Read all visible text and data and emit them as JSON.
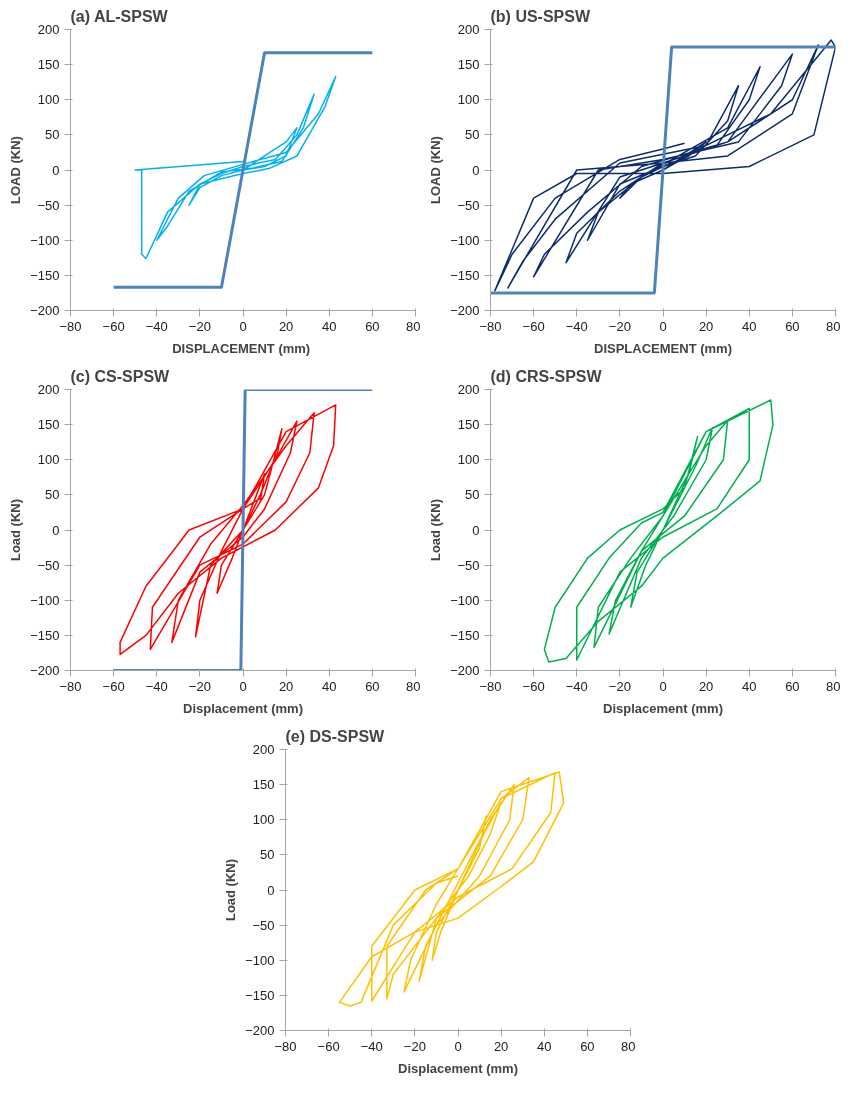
{
  "chart_data": [
    {
      "type": "line",
      "title": "(a) AL-SPSW",
      "xlabel": "DISPLACEMENT  (mm)",
      "ylabel": "LOAD (KN)",
      "xlim": [
        -80,
        80
      ],
      "ylim": [
        -200,
        200
      ],
      "xticks": [
        -80,
        -60,
        -40,
        -20,
        0,
        20,
        40,
        60,
        80
      ],
      "yticks": [
        -200,
        -150,
        -100,
        -50,
        0,
        50,
        100,
        150,
        200
      ],
      "series": [
        {
          "color": "#00b0f0",
          "x": [
            0,
            10,
            20,
            25,
            20,
            10,
            0,
            -10,
            -20,
            -25,
            -20,
            -10,
            0,
            15,
            25,
            33,
            28,
            18,
            5,
            -10,
            -25,
            -35,
            -40,
            -30,
            -18,
            0,
            20,
            35,
            43,
            38,
            25,
            12,
            0,
            -20,
            -35,
            -45,
            -47,
            -47,
            -50,
            0
          ],
          "values": [
            0,
            20,
            40,
            60,
            20,
            5,
            0,
            -8,
            -25,
            -50,
            -20,
            -5,
            5,
            15,
            50,
            108,
            60,
            12,
            3,
            -3,
            -30,
            -80,
            -100,
            -40,
            -8,
            8,
            25,
            80,
            133,
            90,
            20,
            2,
            -5,
            -20,
            -60,
            -126,
            -120,
            0,
            0,
            12
          ]
        },
        {
          "color": "#4f81bd",
          "x": [
            -60,
            -10,
            10,
            60
          ],
          "values": [
            -167,
            -167,
            167,
            167
          ]
        }
      ]
    },
    {
      "type": "line",
      "title": "(b) US-SPSW",
      "xlabel": "DISPLACEMENT (mm)",
      "ylabel": "LOAD (KN)",
      "xlim": [
        -80,
        80
      ],
      "ylim": [
        -200,
        200
      ],
      "xticks": [
        -80,
        -60,
        -40,
        -20,
        0,
        20,
        40,
        60,
        80
      ],
      "yticks": [
        -200,
        -150,
        -100,
        -50,
        0,
        50,
        100,
        150,
        200
      ],
      "series": [
        {
          "color": "#0d2c6c",
          "x": [
            0,
            10,
            20,
            12,
            0,
            -10,
            -20,
            -15,
            0,
            20,
            35,
            30,
            15,
            0,
            -20,
            -35,
            -30,
            -10,
            10,
            30,
            45,
            40,
            25,
            0,
            -20,
            -45,
            -40,
            -20,
            0,
            30,
            60,
            55,
            35,
            0,
            -30,
            -60,
            -55,
            -35,
            -10,
            30,
            60,
            72,
            60,
            30,
            0,
            -40,
            -72,
            -65,
            -50,
            -20,
            20,
            50,
            78,
            80,
            70,
            40,
            0,
            -40,
            -60,
            -78,
            -70,
            -50,
            -20,
            0,
            10
          ],
          "values": [
            0,
            20,
            40,
            20,
            5,
            -10,
            -40,
            -20,
            0,
            35,
            120,
            70,
            20,
            5,
            -20,
            -100,
            -60,
            -10,
            25,
            60,
            147,
            100,
            35,
            10,
            -10,
            -132,
            -90,
            -30,
            10,
            40,
            165,
            120,
            40,
            15,
            0,
            -152,
            -120,
            -60,
            5,
            40,
            100,
            178,
            80,
            20,
            10,
            0,
            -168,
            -130,
            -70,
            10,
            35,
            80,
            185,
            175,
            50,
            5,
            -5,
            -5,
            -40,
            -172,
            -120,
            -40,
            15,
            30,
            38
          ]
        },
        {
          "color": "#4f81bd",
          "x": [
            -80,
            -4,
            4,
            80
          ],
          "values": [
            -175,
            -175,
            175,
            175
          ]
        }
      ]
    },
    {
      "type": "line",
      "title": "(c) CS-SPSW",
      "xlabel": "Displacement (mm)",
      "ylabel": "Load (KN)",
      "xlim": [
        -80,
        80
      ],
      "ylim": [
        -200,
        200
      ],
      "xticks": [
        -80,
        -60,
        -40,
        -20,
        0,
        20,
        40,
        60,
        80
      ],
      "yticks": [
        -200,
        -150,
        -100,
        -50,
        0,
        50,
        100,
        150,
        200
      ],
      "series": [
        {
          "color": "#ff0000",
          "x": [
            0,
            5,
            10,
            8,
            0,
            -5,
            -12,
            -10,
            0,
            10,
            18,
            16,
            8,
            0,
            -15,
            -22,
            -20,
            -10,
            0,
            15,
            25,
            22,
            10,
            0,
            -20,
            -33,
            -30,
            -15,
            0,
            20,
            33,
            31,
            20,
            0,
            -20,
            -43,
            -42,
            -20,
            0,
            20,
            43,
            42,
            35,
            15,
            -10,
            -30,
            -45,
            -57,
            -57,
            -45,
            -25,
            0,
            8
          ],
          "values": [
            0,
            40,
            80,
            40,
            0,
            -40,
            -90,
            -50,
            0,
            50,
            144,
            110,
            50,
            0,
            -50,
            -152,
            -100,
            -30,
            30,
            100,
            155,
            110,
            30,
            -10,
            -60,
            -160,
            -100,
            -20,
            35,
            120,
            167,
            110,
            40,
            -20,
            -50,
            -170,
            -110,
            -10,
            30,
            140,
            178,
            120,
            60,
            0,
            -40,
            -90,
            -150,
            -177,
            -160,
            -80,
            0,
            30,
            45
          ]
        },
        {
          "color": "#4f81bd",
          "x": [
            -60,
            -1,
            1,
            60
          ],
          "values": [
            -200,
            -200,
            200,
            200
          ]
        }
      ]
    },
    {
      "type": "line",
      "title": "(d) CRS-SPSW",
      "xlabel": "Displacement (mm)",
      "ylabel": "Load (KN)",
      "xlim": [
        -80,
        80
      ],
      "ylim": [
        -200,
        200
      ],
      "xticks": [
        -80,
        -60,
        -40,
        -20,
        0,
        20,
        40,
        60,
        80
      ],
      "yticks": [
        -200,
        -150,
        -100,
        -50,
        0,
        50,
        100,
        150,
        200
      ],
      "series": [
        {
          "color": "#00b050",
          "x": [
            0,
            10,
            16,
            12,
            0,
            -8,
            -15,
            -12,
            0,
            15,
            23,
            20,
            5,
            -10,
            -25,
            -22,
            -10,
            0,
            20,
            30,
            28,
            10,
            -10,
            -32,
            -30,
            -15,
            0,
            20,
            40,
            40,
            25,
            0,
            -20,
            -40,
            -40,
            -25,
            -10,
            0,
            20,
            50,
            51,
            45,
            25,
            0,
            -10,
            -30,
            -45,
            -53,
            -55,
            -50,
            -35,
            -20,
            0,
            10
          ],
          "values": [
            0,
            60,
            133,
            80,
            0,
            -50,
            -110,
            -60,
            0,
            90,
            146,
            100,
            20,
            -40,
            -148,
            -100,
            -30,
            20,
            120,
            156,
            100,
            20,
            -30,
            -167,
            -110,
            -40,
            20,
            140,
            173,
            100,
            30,
            -10,
            -60,
            -185,
            -110,
            -40,
            10,
            25,
            140,
            185,
            150,
            70,
            20,
            -40,
            -80,
            -130,
            -183,
            -188,
            -170,
            -110,
            -40,
            0,
            30,
            60
          ]
        }
      ]
    },
    {
      "type": "line",
      "title": "(e) DS-SPSW",
      "xlabel": "Displacement (mm)",
      "ylabel": "Load (KN)",
      "xlim": [
        -80,
        80
      ],
      "ylim": [
        -200,
        200
      ],
      "xticks": [
        -80,
        -60,
        -40,
        -20,
        0,
        20,
        40,
        60,
        80
      ],
      "yticks": [
        -200,
        -150,
        -100,
        -50,
        0,
        50,
        100,
        150,
        200
      ],
      "series": [
        {
          "color": "#ffc000",
          "x": [
            0,
            10,
            13,
            10,
            0,
            -8,
            -12,
            -10,
            0,
            12,
            20,
            15,
            5,
            -10,
            -18,
            -15,
            0,
            15,
            26,
            24,
            10,
            -10,
            -25,
            -22,
            -10,
            0,
            20,
            33,
            30,
            15,
            -10,
            -30,
            -33,
            -33,
            -15,
            0,
            20,
            45,
            43,
            25,
            0,
            -20,
            -40,
            -40,
            -20,
            0,
            20,
            47,
            49,
            35,
            20,
            0,
            -20,
            -40,
            -55,
            -50,
            -45,
            -30,
            -10,
            0
          ],
          "values": [
            0,
            60,
            105,
            60,
            0,
            -60,
            -100,
            -60,
            0,
            80,
            125,
            80,
            20,
            -40,
            -130,
            -80,
            10,
            100,
            150,
            100,
            20,
            -50,
            -145,
            -100,
            -20,
            30,
            130,
            160,
            100,
            20,
            -40,
            -120,
            -155,
            -80,
            0,
            30,
            130,
            167,
            110,
            30,
            -10,
            -60,
            -158,
            -80,
            0,
            30,
            140,
            168,
            124,
            40,
            5,
            -40,
            -60,
            -95,
            -160,
            -165,
            -160,
            -50,
            10,
            20
          ]
        }
      ]
    }
  ]
}
